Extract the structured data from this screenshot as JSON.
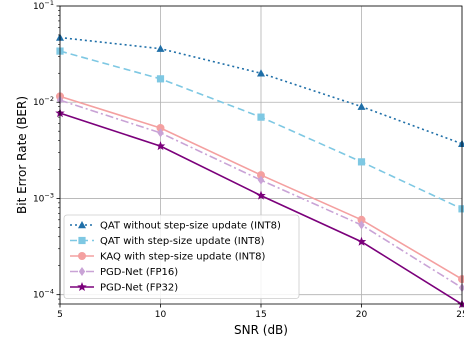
{
  "chart_data": {
    "type": "line",
    "title": "",
    "xlabel": "SNR (dB)",
    "ylabel": "Bit Error Rate (BER)",
    "x": [
      5,
      10,
      15,
      20,
      25
    ],
    "xlim": [
      5,
      25
    ],
    "ylim": [
      8e-05,
      0.1
    ],
    "yscale": "log",
    "grid": true,
    "legend_position": "bottom-left",
    "x_tick_labels": [
      "5",
      "10",
      "15",
      "20",
      "25"
    ],
    "y_tick_labels": [
      {
        "base": "10",
        "exp": "−1",
        "value": 0.1
      },
      {
        "base": "10",
        "exp": "−2",
        "value": 0.01
      },
      {
        "base": "10",
        "exp": "−3",
        "value": 0.001
      },
      {
        "base": "10",
        "exp": "−4",
        "value": 0.0001
      }
    ],
    "series": [
      {
        "name": "QAT without step-size update (INT8)",
        "values": [
          0.047,
          0.036,
          0.02,
          0.009,
          0.0037
        ],
        "color": "#1f6fa8",
        "dash": "2,3",
        "marker": "triangle"
      },
      {
        "name": "QAT with step-size update (INT8)",
        "values": [
          0.034,
          0.0175,
          0.007,
          0.0024,
          0.00078
        ],
        "color": "#7ec8e3",
        "dash": "7,4",
        "marker": "square"
      },
      {
        "name": "KAQ with step-size update (INT8)",
        "values": [
          0.0115,
          0.0054,
          0.00175,
          0.0006,
          0.000145
        ],
        "color": "#f4a0a0",
        "dash": "",
        "marker": "circle"
      },
      {
        "name": "PGD-Net (FP16)",
        "values": [
          0.0105,
          0.0048,
          0.00155,
          0.00053,
          0.000118
        ],
        "color": "#c9a3d6",
        "dash": "8,3,2,3",
        "marker": "diamond"
      },
      {
        "name": "PGD-Net (FP32)",
        "values": [
          0.0077,
          0.0035,
          0.00107,
          0.000355,
          7.95e-05
        ],
        "color": "#7b007b",
        "dash": "",
        "marker": "star"
      }
    ]
  }
}
